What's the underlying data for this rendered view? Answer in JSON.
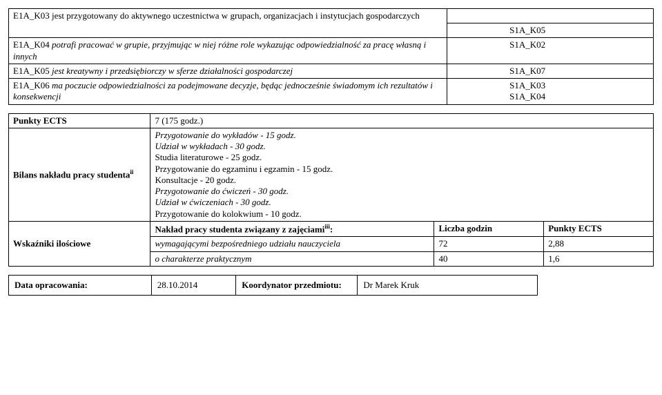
{
  "table1": {
    "rows": [
      {
        "left_plain": "E1A_K03 jest przygotowany do aktywnego uczestnictwa w grupach, organizacjach i instytucjach gospodarczych",
        "left_italic": "",
        "right": "S1A_K05"
      },
      {
        "left_plain": "E1A_K04 ",
        "left_italic": "potrafi pracować w grupie, przyjmując w niej różne role wykazując odpowiedzialność za pracę własną i innych",
        "right": "S1A_K02"
      },
      {
        "left_plain": "E1A_K05 ",
        "left_italic": "jest kreatywny i przedsiębiorczy w sferze działalności gospodarczej",
        "right": "S1A_K07"
      },
      {
        "left_plain": "E1A_K06 ",
        "left_italic": "ma poczucie odpowiedzialności za podejmowane decyzje, będąc jednocześnie świadomym ich rezultatów i konsekwencji",
        "right": "S1A_K03\nS1A_K04"
      }
    ],
    "header_right_empty": ""
  },
  "table2": {
    "row_ects": {
      "label": "Punkty ECTS",
      "value": "7 (175 godz.)"
    },
    "row_bilans": {
      "label_prefix": "Bilans nakładu pracy studenta",
      "label_sup": "ii",
      "lines": [
        {
          "text": "Przygotowanie do wykładów - 15 godz.",
          "italic": true
        },
        {
          "text": "Udział w wykładach - 30 godz.",
          "italic": true
        },
        {
          "text": "Studia literaturowe - 25 godz.",
          "italic": false
        },
        {
          "text": "Przygotowanie do egzaminu i egzamin - 15 godz.",
          "italic": false
        },
        {
          "text": "Konsultacje  - 20 godz.",
          "italic": false
        },
        {
          "text": "Przygotowanie do ćwiczeń - 30 godz.",
          "italic": true
        },
        {
          "text": "Udział w ćwiczeniach - 30 godz.",
          "italic": true
        },
        {
          "text": "Przygotowanie do kolokwium - 10 godz.",
          "italic": false
        }
      ]
    },
    "row_wsk": {
      "label": "Wskaźniki ilościowe",
      "header_center_bold": "Nakład pracy studenta związany z zajęciami",
      "header_center_sup": "iii",
      "header_center_colon": ":",
      "line2": "wymagającymi bezpośredniego udziału nauczyciela",
      "line3": "o charakterze praktycznym",
      "col_hours_label": "Liczba godzin",
      "col_ects_label": "Punkty ECTS",
      "val_hours_1": "72",
      "val_ects_1": "2,88",
      "val_hours_2": "40",
      "val_ects_2": "1,6"
    }
  },
  "table3": {
    "label_date": "Data opracowania:",
    "value_date": "28.10.2014",
    "label_coord": "Koordynator przedmiotu:",
    "value_coord": "Dr Marek Kruk"
  }
}
